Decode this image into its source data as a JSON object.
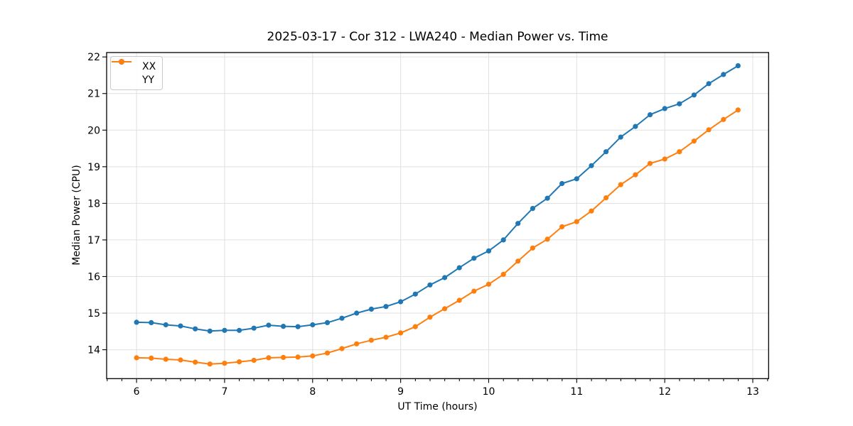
{
  "chart_data": {
    "type": "line",
    "title": "2025-03-17 - Cor 312 - LWA240 - Median Power vs. Time",
    "xlabel": "UT Time (hours)",
    "ylabel": "Median Power (CPU)",
    "xlim": [
      5.66,
      13.18
    ],
    "ylim": [
      13.21,
      22.12
    ],
    "x_ticks": [
      6,
      7,
      8,
      9,
      10,
      11,
      12,
      13
    ],
    "y_ticks": [
      14,
      15,
      16,
      17,
      18,
      19,
      20,
      21,
      22
    ],
    "x_minor_tick_step": 0.1667,
    "grid": true,
    "grid_color": "#e0e0e0",
    "legend_position": "upper-left",
    "marker": "circle",
    "x": [
      6.0,
      6.167,
      6.333,
      6.5,
      6.667,
      6.833,
      7.0,
      7.167,
      7.333,
      7.5,
      7.667,
      7.833,
      8.0,
      8.167,
      8.333,
      8.5,
      8.667,
      8.833,
      9.0,
      9.167,
      9.333,
      9.5,
      9.667,
      9.833,
      10.0,
      10.167,
      10.333,
      10.5,
      10.667,
      10.833,
      11.0,
      11.167,
      11.333,
      11.5,
      11.667,
      11.833,
      12.0,
      12.167,
      12.333,
      12.5,
      12.667,
      12.833
    ],
    "series": [
      {
        "name": "XX",
        "color": "#1f77b4",
        "values": [
          14.75,
          14.74,
          14.68,
          14.65,
          14.57,
          14.51,
          14.53,
          14.53,
          14.59,
          14.67,
          14.64,
          14.63,
          14.68,
          14.74,
          14.86,
          15.0,
          15.11,
          15.18,
          15.31,
          15.52,
          15.77,
          15.97,
          16.24,
          16.5,
          16.7,
          17.0,
          17.45,
          17.86,
          18.14,
          18.54,
          18.67,
          19.03,
          19.41,
          19.81,
          20.1,
          20.42,
          20.59,
          20.72,
          20.96,
          21.27,
          21.52,
          21.76
        ]
      },
      {
        "name": "YY",
        "color": "#ff7f0e",
        "values": [
          13.78,
          13.77,
          13.74,
          13.72,
          13.66,
          13.61,
          13.63,
          13.67,
          13.71,
          13.78,
          13.79,
          13.8,
          13.83,
          13.91,
          14.03,
          14.16,
          14.26,
          14.34,
          14.46,
          14.63,
          14.89,
          15.12,
          15.35,
          15.6,
          15.79,
          16.06,
          16.42,
          16.78,
          17.02,
          17.36,
          17.5,
          17.79,
          18.15,
          18.51,
          18.78,
          19.09,
          19.21,
          19.41,
          19.7,
          20.01,
          20.29,
          20.55
        ]
      }
    ]
  }
}
